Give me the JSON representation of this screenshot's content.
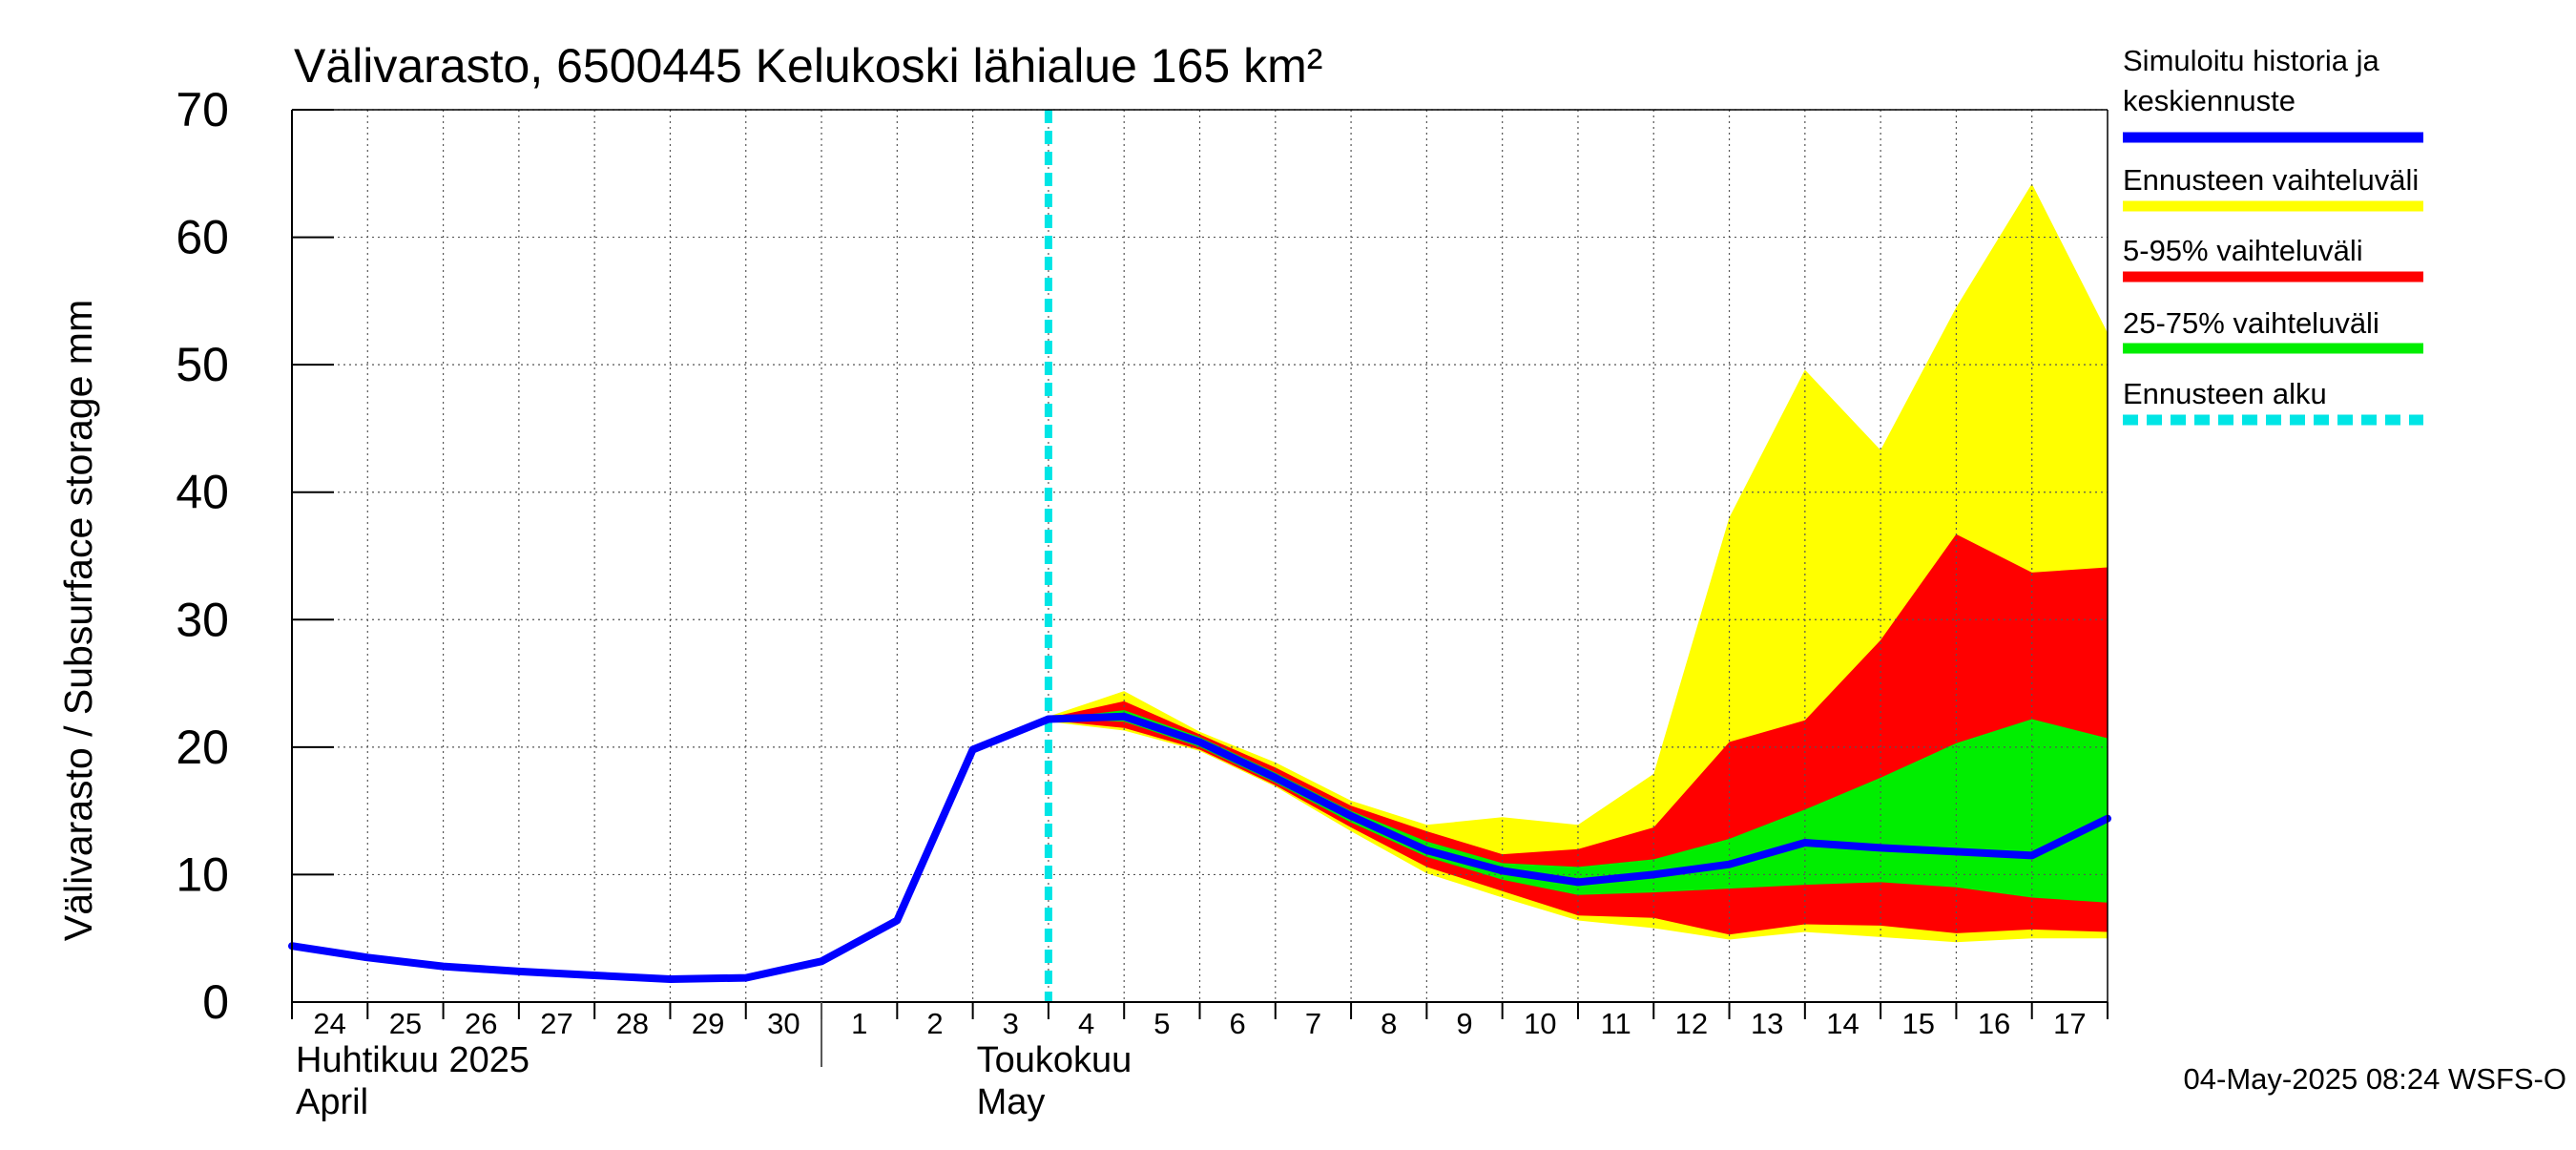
{
  "title": "Välivarasto, 6500445 Kelukoski lähialue 165 km²",
  "footer_timestamp": "04-May-2025 08:24 WSFS-O",
  "month_labels": [
    {
      "fi": "Huhtikuu  2025",
      "en": "April",
      "day": 24
    },
    {
      "fi": "Toukokuu",
      "en": "May",
      "day": 33
    }
  ],
  "legend": [
    {
      "line1": "Simuloitu historia ja",
      "line2": "keskiennuste",
      "color": "#0000ff",
      "style": "solid"
    },
    {
      "line1": "Ennusteen vaihteluväli",
      "line2": "",
      "color": "#ffff00",
      "style": "solid"
    },
    {
      "line1": "5-95% vaihteluväli",
      "line2": "",
      "color": "#ff0000",
      "style": "solid"
    },
    {
      "line1": "25-75% vaihteluväli",
      "line2": "",
      "color": "#00ee00",
      "style": "solid"
    },
    {
      "line1": "Ennusteen alku",
      "line2": "",
      "color": "#00e5e5",
      "style": "dashed"
    }
  ],
  "chart_data": {
    "type": "area",
    "title": "Välivarasto, 6500445 Kelukoski lähialue 165 km²",
    "ylabel": "Välivarasto / Subsurface storage  mm",
    "xlabel": "",
    "ylim": [
      0,
      70
    ],
    "yticks": [
      0,
      10,
      20,
      30,
      40,
      50,
      60,
      70
    ],
    "xlim": [
      24,
      48
    ],
    "x_tick_labels": [
      "24",
      "25",
      "26",
      "27",
      "28",
      "29",
      "30",
      "1",
      "2",
      "3",
      "4",
      "5",
      "6",
      "7",
      "8",
      "9",
      "10",
      "11",
      "12",
      "13",
      "14",
      "15",
      "16",
      "17"
    ],
    "month_separators": [
      31
    ],
    "forecast_start": 34,
    "grid": true,
    "colors": {
      "simulated": "#0000ff",
      "full_range": "#ffff00",
      "p5_95": "#ff0000",
      "p25_75": "#00ee00",
      "forecast_start": "#00e5e5"
    },
    "series": [
      {
        "name": "Simuloitu historia ja keskiennuste",
        "x": [
          24,
          25,
          26,
          27,
          28,
          29,
          30,
          31,
          32,
          33,
          34,
          35,
          36,
          37,
          38,
          39,
          40,
          41,
          42,
          43,
          44,
          45,
          46,
          47,
          48
        ],
        "values": [
          4.4,
          3.5,
          2.8,
          2.4,
          2.1,
          1.8,
          1.9,
          3.2,
          6.4,
          19.8,
          22.2,
          22.4,
          20.4,
          17.6,
          14.6,
          11.9,
          10.3,
          9.4,
          10.0,
          10.8,
          12.5,
          12.1,
          11.8,
          11.5,
          14.4
        ]
      },
      {
        "name": "Ennusteen vaihteluväli",
        "x": [
          34,
          35,
          36,
          37,
          38,
          39,
          40,
          41,
          42,
          43,
          44,
          45,
          46,
          47,
          48
        ],
        "upper": [
          22.4,
          24.4,
          21.2,
          18.8,
          15.8,
          13.9,
          14.5,
          13.9,
          17.9,
          38.0,
          49.6,
          43.3,
          54.5,
          64.2,
          52.5
        ],
        "lower": [
          22.0,
          21.3,
          19.7,
          16.9,
          13.4,
          10.1,
          8.2,
          6.4,
          5.8,
          4.9,
          5.5,
          5.1,
          4.7,
          5.0,
          5.0
        ]
      },
      {
        "name": "5-95% vaihteluväli",
        "x": [
          34,
          35,
          36,
          37,
          38,
          39,
          40,
          41,
          42,
          43,
          44,
          45,
          46,
          47,
          48
        ],
        "upper": [
          22.3,
          23.6,
          21.0,
          18.4,
          15.4,
          13.4,
          11.6,
          12.0,
          13.7,
          20.4,
          22.1,
          28.4,
          36.7,
          33.7,
          34.1
        ],
        "lower": [
          22.1,
          21.5,
          19.8,
          17.0,
          13.7,
          10.6,
          8.7,
          6.8,
          6.6,
          5.3,
          6.1,
          6.0,
          5.4,
          5.7,
          5.5
        ]
      },
      {
        "name": "25-75% vaihteluväli",
        "x": [
          34,
          35,
          36,
          37,
          38,
          39,
          40,
          41,
          42,
          43,
          44,
          45,
          46,
          47,
          48
        ],
        "upper": [
          22.2,
          22.9,
          20.8,
          18.0,
          15.0,
          12.6,
          10.9,
          10.6,
          11.2,
          12.8,
          15.1,
          17.6,
          20.3,
          22.2,
          20.7
        ],
        "lower": [
          22.2,
          22.0,
          20.0,
          17.2,
          14.1,
          11.4,
          9.6,
          8.4,
          8.6,
          8.9,
          9.2,
          9.4,
          9.0,
          8.2,
          7.8
        ]
      }
    ]
  }
}
